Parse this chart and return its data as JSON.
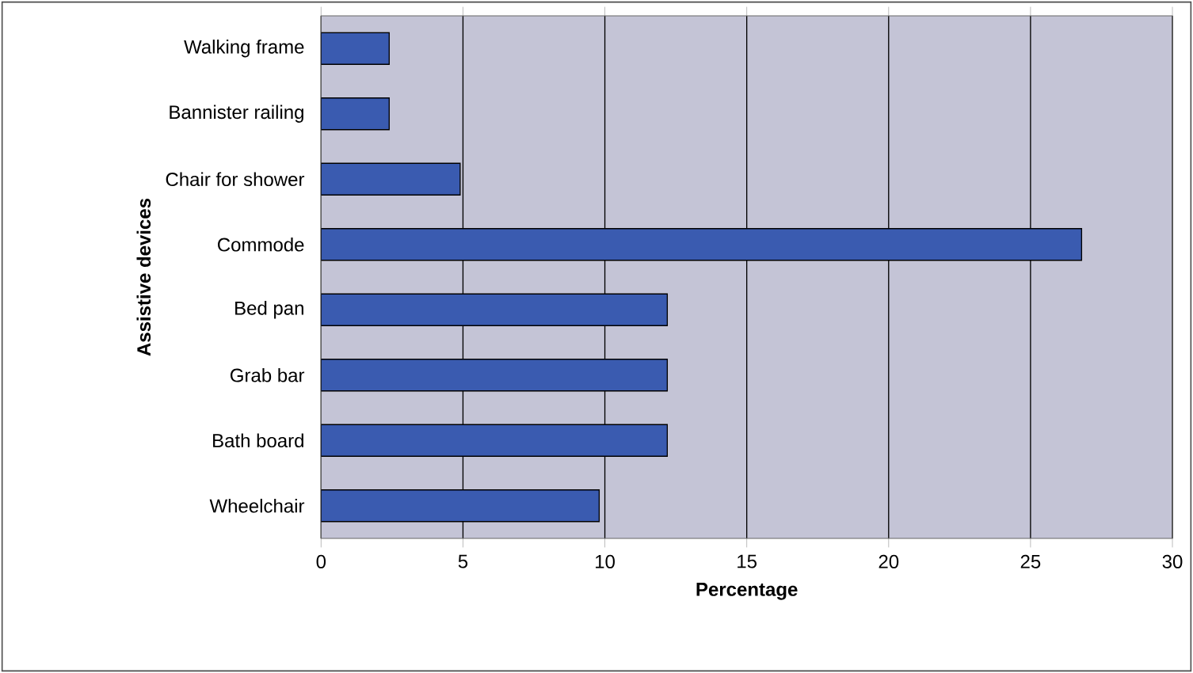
{
  "chart_data": {
    "type": "bar",
    "orientation": "horizontal",
    "xlabel": "Percentage",
    "ylabel": "Assistive devices",
    "categories": [
      "Walking frame",
      "Bannister railing",
      "Chair for shower",
      "Commode",
      "Bed pan",
      "Grab bar",
      "Bath board",
      "Wheelchair"
    ],
    "values": [
      2.4,
      2.4,
      4.9,
      26.8,
      12.2,
      12.2,
      12.2,
      9.8
    ],
    "color": "#3a5bb0",
    "xlim": [
      0,
      30
    ],
    "xticks": [
      0,
      5,
      10,
      15,
      20,
      25,
      30
    ],
    "grid": "x"
  }
}
